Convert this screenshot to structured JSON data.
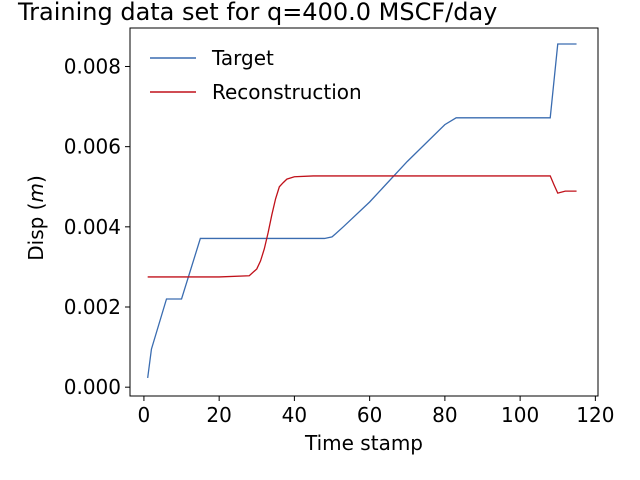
{
  "chart_data": {
    "type": "line",
    "title": "Training data set for q=400.0 MSCF/day",
    "xlabel": "Time stamp",
    "ylabel_prefix": "Disp (",
    "ylabel_unit": "m",
    "ylabel_suffix": ")",
    "xlim": [
      -3.7,
      120.7
    ],
    "ylim": [
      -0.00022,
      0.00896
    ],
    "xticks": [
      0,
      20,
      40,
      60,
      80,
      100,
      120
    ],
    "xtick_labels": [
      "0",
      "20",
      "40",
      "60",
      "80",
      "100",
      "120"
    ],
    "yticks": [
      0.0,
      0.002,
      0.004,
      0.006,
      0.008
    ],
    "ytick_labels": [
      "0.000",
      "0.002",
      "0.004",
      "0.006",
      "0.008"
    ],
    "grid": false,
    "legend_position": "top-left",
    "series": [
      {
        "name": "Target",
        "color": "#3a6cb0",
        "x": [
          1,
          2,
          6,
          7,
          10,
          15,
          20,
          30,
          40,
          48,
          50,
          51,
          53,
          60,
          70,
          80,
          83,
          85,
          90,
          100,
          108,
          110,
          111,
          115
        ],
        "y": [
          0.00023,
          0.00095,
          0.0022,
          0.0022,
          0.0022,
          0.00371,
          0.00371,
          0.00371,
          0.00371,
          0.00371,
          0.00375,
          0.00383,
          0.004,
          0.00462,
          0.00563,
          0.00655,
          0.00672,
          0.00672,
          0.00672,
          0.00672,
          0.00672,
          0.00856,
          0.00856,
          0.00856
        ]
      },
      {
        "name": "Reconstruction",
        "color": "#c0111a",
        "x": [
          1,
          10,
          20,
          28,
          30,
          31,
          32,
          33,
          34,
          35,
          36,
          37,
          38,
          40,
          45,
          60,
          80,
          100,
          107,
          108,
          109,
          110,
          112,
          115
        ],
        "y": [
          0.00275,
          0.00275,
          0.00275,
          0.00278,
          0.00295,
          0.00315,
          0.00345,
          0.00385,
          0.0043,
          0.0047,
          0.005,
          0.0051,
          0.00519,
          0.00525,
          0.00527,
          0.00527,
          0.00527,
          0.00527,
          0.00527,
          0.00527,
          0.00505,
          0.00484,
          0.00489,
          0.00489
        ]
      }
    ]
  }
}
